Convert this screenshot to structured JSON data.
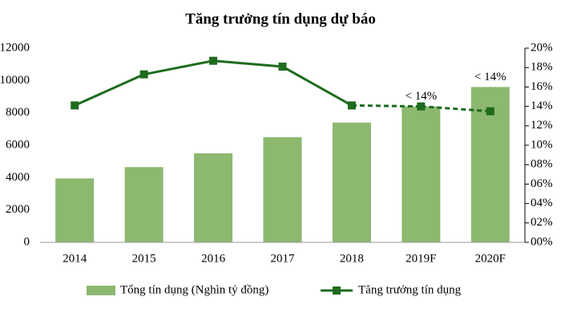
{
  "chart_data": {
    "type": "bar-line",
    "title": "Tăng trưởng tín dụng dự báo",
    "categories": [
      "2014",
      "2015",
      "2016",
      "2017",
      "2018",
      "2019F",
      "2020F"
    ],
    "series": [
      {
        "name": "Tổng tín dụng (Nghìn tỷ đồng)",
        "type": "bar",
        "color": "#8cb870",
        "values": [
          3950,
          4650,
          5500,
          6500,
          7400,
          8400,
          9600
        ]
      },
      {
        "name": "Tăng trưởng tín dụng",
        "type": "line",
        "axis": "y2",
        "color": "#1e6b1e",
        "values": [
          14.1,
          17.3,
          18.7,
          18.1,
          14.1,
          14.0,
          13.5
        ]
      }
    ],
    "ylim": [
      0,
      12000
    ],
    "yticks": [
      0,
      2000,
      4000,
      6000,
      8000,
      10000,
      12000
    ],
    "y2lim": [
      0,
      20
    ],
    "y2ticks": [
      {
        "value": 0,
        "label": "00%"
      },
      {
        "value": 2,
        "label": "02%"
      },
      {
        "value": 4,
        "label": "04%"
      },
      {
        "value": 6,
        "label": "06%"
      },
      {
        "value": 8,
        "label": "08%"
      },
      {
        "value": 10,
        "label": "10%"
      },
      {
        "value": 12,
        "label": "12%"
      },
      {
        "value": 14,
        "label": "14%"
      },
      {
        "value": 16,
        "label": "16%"
      },
      {
        "value": 18,
        "label": "18%"
      },
      {
        "value": 20,
        "label": "20%"
      }
    ],
    "annotations": [
      {
        "text": "< 14%",
        "category": "2019F"
      },
      {
        "text": "< 14%",
        "category": "2020F"
      }
    ],
    "legend": "bottom"
  }
}
